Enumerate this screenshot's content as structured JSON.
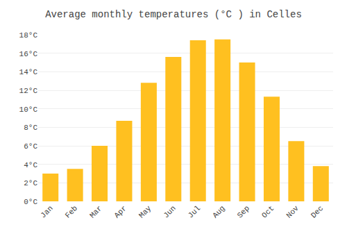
{
  "chart_data": {
    "type": "bar",
    "title": "Average monthly temperatures (°C ) in Celles",
    "categories": [
      "Jan",
      "Feb",
      "Mar",
      "Apr",
      "May",
      "Jun",
      "Jul",
      "Aug",
      "Sep",
      "Oct",
      "Nov",
      "Dec"
    ],
    "values": [
      3.0,
      3.5,
      6.0,
      8.7,
      12.8,
      15.6,
      17.4,
      17.5,
      15.0,
      11.3,
      6.5,
      3.8
    ],
    "color": "#FFC020",
    "ylim": [
      0,
      18
    ],
    "yticks": [
      {
        "value": 0,
        "label": "0°C"
      },
      {
        "value": 2,
        "label": "2°C"
      },
      {
        "value": 4,
        "label": "4°C"
      },
      {
        "value": 6,
        "label": "6°C"
      },
      {
        "value": 8,
        "label": "8°C"
      },
      {
        "value": 10,
        "label": "10°C"
      },
      {
        "value": 12,
        "label": "12°C"
      },
      {
        "value": 14,
        "label": "14°C"
      },
      {
        "value": 16,
        "label": "16°C"
      },
      {
        "value": 18,
        "label": "18°C"
      }
    ],
    "grid": true
  }
}
